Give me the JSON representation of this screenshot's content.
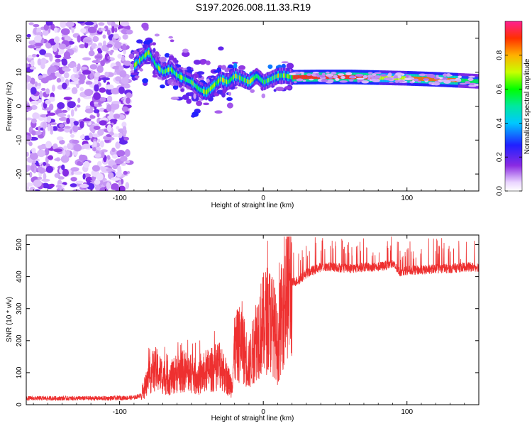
{
  "chart_data": [
    {
      "type": "heatmap",
      "title": "S197.2026.008.11.33.R19",
      "xlabel": "Height of straight line (km)",
      "ylabel": "Frequency (Hz)",
      "xlim": [
        -165,
        150
      ],
      "ylim": [
        -25,
        25
      ],
      "xticks": [
        -100,
        0,
        100
      ],
      "yticks": [
        -20,
        -10,
        0,
        10,
        20
      ],
      "noise_region_x": [
        -165,
        -93
      ],
      "signal_ridge": {
        "x": [
          -90,
          -85,
          -80,
          -75,
          -70,
          -65,
          -60,
          -55,
          -50,
          -45,
          -40,
          -35,
          -30,
          -25,
          -20,
          -15,
          -10,
          -5,
          0,
          5,
          10,
          15,
          20,
          40,
          60,
          80,
          100,
          120,
          140,
          150
        ],
        "freq": [
          12,
          14,
          16,
          12,
          10,
          11,
          9,
          8,
          7,
          5,
          4,
          6,
          8,
          7,
          9,
          8,
          7,
          9,
          7,
          8,
          9,
          9,
          8.5,
          8.6,
          8.6,
          8.4,
          8.2,
          7.9,
          7.5,
          7.3
        ]
      },
      "colorbar": {
        "label": "Normalized spectral amplitude",
        "range": [
          0,
          1
        ],
        "ticks": [
          0.0,
          0.2,
          0.4,
          0.6,
          0.8
        ]
      }
    },
    {
      "type": "line",
      "xlabel": "Height of straight line (km)",
      "ylabel": "SNR (10 * v/v)",
      "xlim": [
        -165,
        150
      ],
      "ylim": [
        0,
        530
      ],
      "xticks": [
        -100,
        0,
        100
      ],
      "yticks": [
        0,
        100,
        200,
        300,
        400,
        500
      ],
      "series": [
        {
          "name": "SNR",
          "color": "#ee3030",
          "x": [
            -165,
            -150,
            -130,
            -110,
            -90,
            -85,
            -82,
            -78,
            -75,
            -70,
            -65,
            -60,
            -55,
            -50,
            -45,
            -40,
            -35,
            -30,
            -25,
            -22,
            -20,
            -15,
            -12,
            -10,
            -5,
            0,
            3,
            6,
            8,
            10,
            12,
            14,
            16,
            20,
            25,
            30,
            40,
            50,
            60,
            70,
            80,
            90,
            95,
            100,
            110,
            120,
            130,
            140,
            150
          ],
          "values": [
            20,
            20,
            20,
            20,
            22,
            30,
            60,
            100,
            110,
            90,
            80,
            100,
            105,
            95,
            80,
            105,
            110,
            130,
            80,
            60,
            170,
            200,
            150,
            120,
            210,
            250,
            270,
            260,
            230,
            170,
            250,
            320,
            370,
            380,
            390,
            410,
            430,
            430,
            425,
            430,
            430,
            440,
            415,
            420,
            420,
            425,
            425,
            430,
            430
          ]
        }
      ]
    }
  ]
}
